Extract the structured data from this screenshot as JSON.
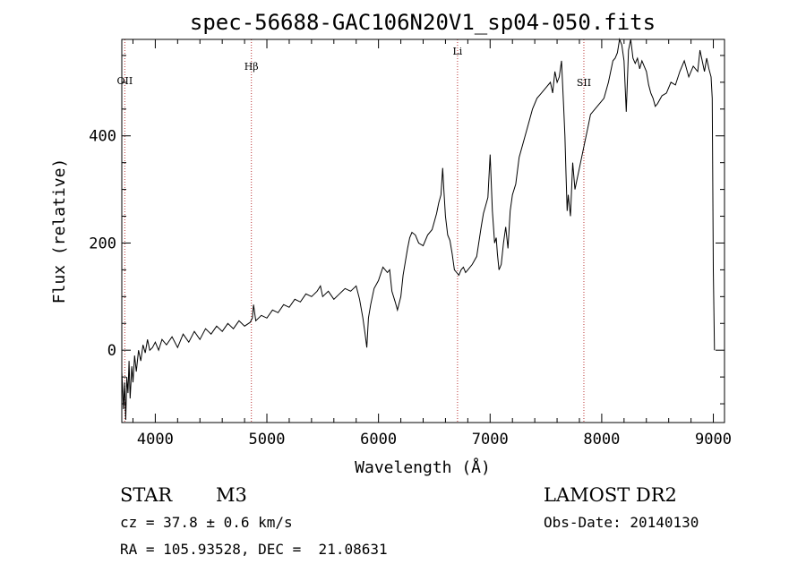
{
  "chart_data": {
    "type": "line",
    "title": "spec-56688-GAC106N20V1_sp04-050.fits",
    "xlabel": "Wavelength (Å)",
    "ylabel": "Flux (relative)",
    "xlim": [
      3700,
      9100
    ],
    "ylim": [
      -135,
      580
    ],
    "xticks": [
      4000,
      5000,
      6000,
      7000,
      8000,
      9000
    ],
    "yticks": [
      0,
      200,
      400
    ],
    "line_markers": [
      {
        "label": "OII",
        "x": 3727
      },
      {
        "label": "Hβ",
        "x": 4861
      },
      {
        "label": "Li",
        "x": 6708
      },
      {
        "label": "SII",
        "x": 7840
      }
    ],
    "series": [
      {
        "x": [
          3700,
          3715,
          3725,
          3735,
          3745,
          3755,
          3765,
          3775,
          3790,
          3800,
          3815,
          3830,
          3850,
          3870,
          3890,
          3910,
          3930,
          3950,
          3975,
          4000,
          4030,
          4060,
          4100,
          4150,
          4200,
          4250,
          4300,
          4350,
          4400,
          4450,
          4500,
          4550,
          4600,
          4650,
          4700,
          4750,
          4800,
          4850,
          4870,
          4880,
          4900,
          4950,
          5000,
          5050,
          5100,
          5150,
          5200,
          5250,
          5300,
          5350,
          5400,
          5450,
          5480,
          5500,
          5550,
          5600,
          5650,
          5700,
          5750,
          5800,
          5830,
          5860,
          5880,
          5895,
          5910,
          5930,
          5960,
          6000,
          6040,
          6080,
          6100,
          6120,
          6150,
          6170,
          6200,
          6220,
          6240,
          6260,
          6280,
          6300,
          6330,
          6360,
          6400,
          6440,
          6480,
          6520,
          6540,
          6560,
          6575,
          6585,
          6600,
          6620,
          6640,
          6660,
          6680,
          6700,
          6720,
          6740,
          6760,
          6780,
          6800,
          6840,
          6880,
          6920,
          6940,
          6960,
          6980,
          7000,
          7020,
          7040,
          7055,
          7065,
          7080,
          7100,
          7120,
          7140,
          7160,
          7180,
          7200,
          7230,
          7260,
          7300,
          7340,
          7380,
          7420,
          7460,
          7500,
          7540,
          7560,
          7580,
          7600,
          7620,
          7640,
          7660,
          7670,
          7680,
          7690,
          7700,
          7720,
          7740,
          7760,
          7780,
          7800,
          7820,
          7840,
          7860,
          7880,
          7900,
          7940,
          7980,
          8020,
          8060,
          8080,
          8100,
          8120,
          8140,
          8160,
          8180,
          8200,
          8220,
          8240,
          8260,
          8280,
          8300,
          8320,
          8340,
          8360,
          8380,
          8400,
          8420,
          8440,
          8460,
          8480,
          8500,
          8540,
          8580,
          8620,
          8660,
          8700,
          8740,
          8780,
          8820,
          8860,
          8880,
          8900,
          8920,
          8940,
          8960,
          8980,
          8990,
          9000,
          9010
        ],
        "y": [
          -40,
          -110,
          -60,
          -130,
          -50,
          -80,
          -20,
          -90,
          -30,
          -60,
          -10,
          -40,
          0,
          -20,
          10,
          -5,
          20,
          0,
          5,
          15,
          0,
          20,
          10,
          25,
          5,
          30,
          15,
          35,
          20,
          40,
          30,
          45,
          35,
          50,
          40,
          55,
          45,
          52,
          60,
          85,
          55,
          65,
          60,
          75,
          70,
          85,
          80,
          95,
          90,
          105,
          100,
          110,
          120,
          100,
          110,
          95,
          105,
          115,
          110,
          120,
          95,
          60,
          30,
          5,
          60,
          85,
          115,
          130,
          155,
          145,
          150,
          110,
          90,
          75,
          100,
          140,
          165,
          190,
          210,
          220,
          215,
          200,
          195,
          215,
          225,
          255,
          275,
          290,
          340,
          300,
          250,
          215,
          205,
          180,
          150,
          145,
          140,
          150,
          155,
          145,
          150,
          160,
          175,
          230,
          255,
          270,
          285,
          365,
          260,
          200,
          210,
          180,
          150,
          160,
          200,
          230,
          190,
          260,
          290,
          310,
          360,
          390,
          420,
          450,
          470,
          480,
          490,
          500,
          480,
          520,
          500,
          510,
          540,
          450,
          400,
          330,
          260,
          290,
          250,
          350,
          300,
          320,
          340,
          360,
          380,
          400,
          420,
          440,
          450,
          460,
          470,
          500,
          520,
          540,
          545,
          555,
          580,
          570,
          540,
          445,
          560,
          580,
          545,
          535,
          545,
          525,
          540,
          530,
          520,
          495,
          480,
          470,
          455,
          460,
          475,
          480,
          500,
          495,
          520,
          540,
          510,
          530,
          520,
          560,
          540,
          520,
          545,
          525,
          510,
          470,
          150,
          0
        ]
      }
    ]
  },
  "info": {
    "object_class": "STAR",
    "subclass": "M3",
    "survey": "LAMOST DR2",
    "redshift": "cz = 37.8 ± 0.6 km/s",
    "obs_date": "Obs-Date: 20140130",
    "coords": "RA = 105.93528, DEC =  21.08631"
  }
}
